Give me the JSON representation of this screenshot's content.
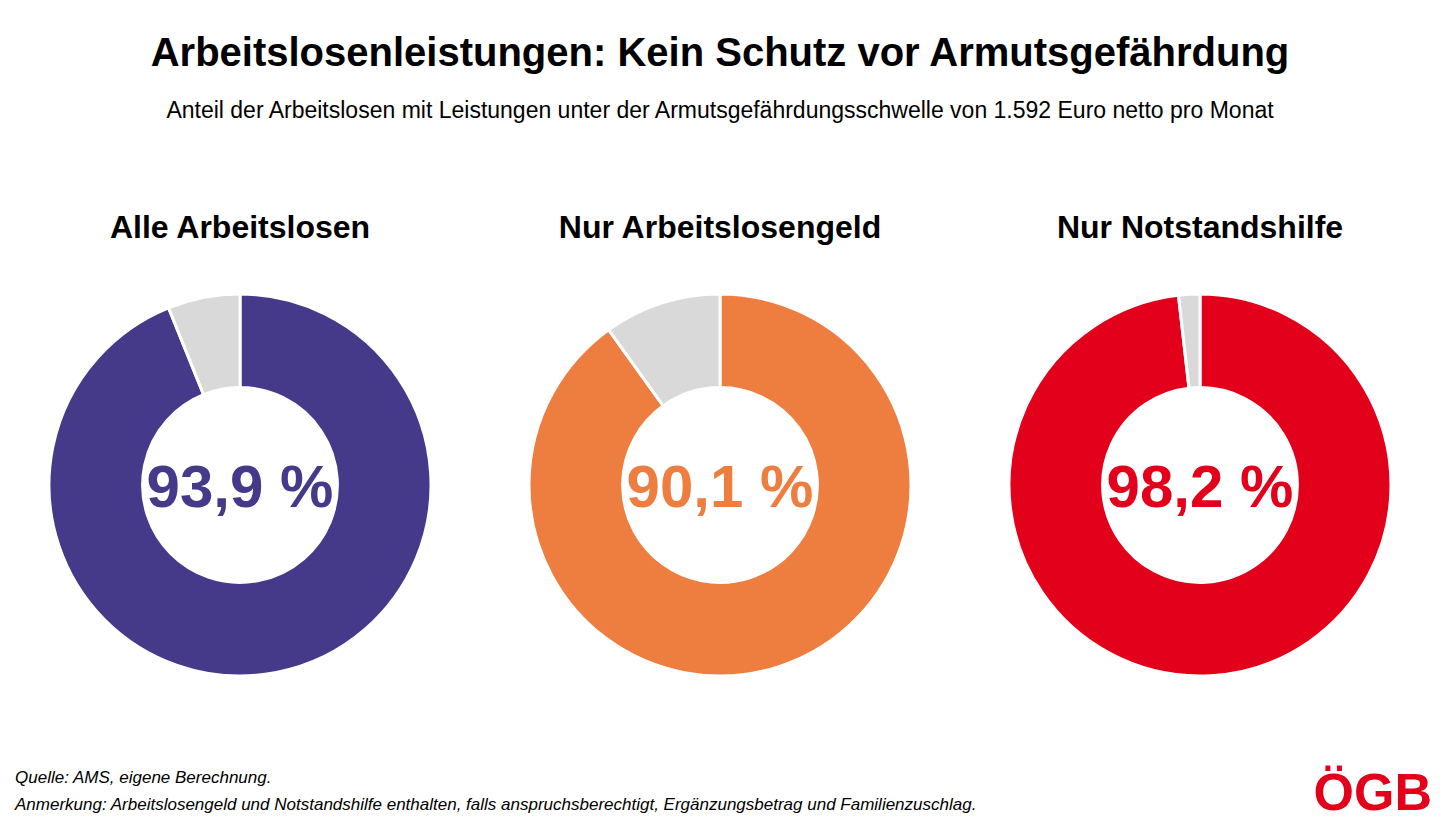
{
  "header": {
    "title": "Arbeitslosenleistungen: Kein Schutz vor Armutsgefährdung",
    "subtitle": "Anteil der Arbeitslosen mit Leistungen unter der Armutsgefährdungsschwelle von 1.592 Euro netto pro Monat"
  },
  "chart_data": [
    {
      "type": "donut",
      "title": "Alle Arbeitslosen",
      "values": [
        93.9,
        6.1
      ],
      "colors": [
        "#45398a",
        "#d9d9d9"
      ],
      "value_labels": [
        "93,9 %",
        null
      ],
      "data_labels": true
    },
    {
      "type": "donut",
      "title": "Nur Arbeitslosengeld",
      "values": [
        90.1,
        9.9
      ],
      "colors": [
        "#ee7d40",
        "#d9d9d9"
      ],
      "value_labels": [
        "90,1 %",
        null
      ],
      "data_labels": true
    },
    {
      "type": "donut",
      "title": "Nur Notstandshilfe",
      "values": [
        98.2,
        1.8
      ],
      "colors": [
        "#e2001a",
        "#d9d9d9"
      ],
      "value_labels": [
        "98,2 %",
        null
      ],
      "data_labels": true
    }
  ],
  "footer": {
    "source": "Quelle: AMS, eigene Berechnung.",
    "note": "Anmerkung: Arbeitslosengeld und Notstandshilfe enthalten, falls anspruchsberechtigt, Ergänzungsbetrag und Familienzuschlag.",
    "logo": "ÖGB"
  }
}
